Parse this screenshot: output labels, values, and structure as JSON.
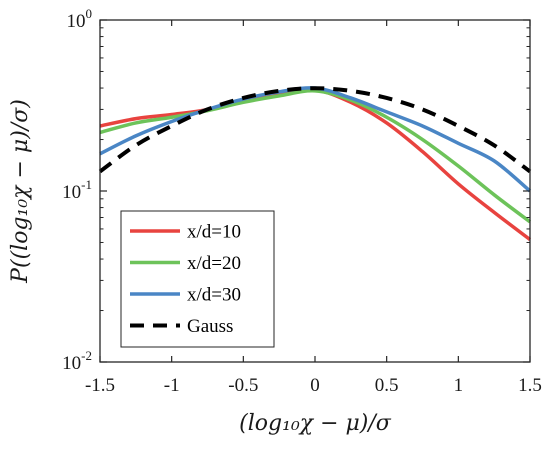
{
  "chart_data": {
    "type": "line",
    "xlabel": "(log₁₀χ − μ)/σ",
    "ylabel": "P((log₁₀χ − μ)/σ)",
    "xlim": [
      -1.5,
      1.5
    ],
    "ylim": [
      0.01,
      1
    ],
    "yscale": "log",
    "grid": false,
    "legend_position": "bottom-left",
    "xticks": [
      {
        "value": -1.5,
        "label": "-1.5"
      },
      {
        "value": -1,
        "label": "-1"
      },
      {
        "value": -0.5,
        "label": "-0.5"
      },
      {
        "value": 0,
        "label": "0"
      },
      {
        "value": 0.5,
        "label": "0.5"
      },
      {
        "value": 1,
        "label": "1"
      },
      {
        "value": 1.5,
        "label": "1.5"
      }
    ],
    "yticks": [
      {
        "value": 1,
        "base": "10",
        "exp": "0"
      },
      {
        "value": 0.1,
        "base": "10",
        "exp": "-1"
      },
      {
        "value": 0.01,
        "base": "10",
        "exp": "-2"
      }
    ],
    "x": [
      -1.5,
      -1.25,
      -1.0,
      -0.75,
      -0.5,
      -0.25,
      0.0,
      0.25,
      0.5,
      0.75,
      1.0,
      1.25,
      1.5
    ],
    "series": [
      {
        "name": "x/d=10",
        "color": "#e8433f",
        "dash": "solid",
        "values": [
          0.24,
          0.265,
          0.28,
          0.3,
          0.34,
          0.37,
          0.39,
          0.33,
          0.25,
          0.17,
          0.11,
          0.075,
          0.052
        ]
      },
      {
        "name": "x/d=20",
        "color": "#6dc35a",
        "dash": "solid",
        "values": [
          0.22,
          0.25,
          0.27,
          0.295,
          0.33,
          0.36,
          0.385,
          0.34,
          0.27,
          0.2,
          0.14,
          0.095,
          0.066
        ]
      },
      {
        "name": "x/d=30",
        "color": "#4a86c5",
        "dash": "solid",
        "values": [
          0.165,
          0.21,
          0.255,
          0.3,
          0.345,
          0.38,
          0.4,
          0.35,
          0.29,
          0.24,
          0.19,
          0.15,
          0.1
        ]
      },
      {
        "name": "Gauss",
        "color": "#000000",
        "dash": "dashed",
        "values": [
          0.13,
          0.185,
          0.24,
          0.3,
          0.35,
          0.385,
          0.399,
          0.385,
          0.35,
          0.3,
          0.24,
          0.185,
          0.13
        ]
      }
    ]
  }
}
